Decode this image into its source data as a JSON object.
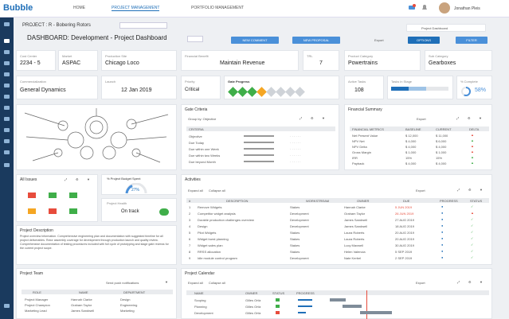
{
  "app": {
    "logo": "Bubble",
    "user": "Jonathan Pleis"
  },
  "nav": [
    "HOME",
    "PROJECT MANAGEMENT",
    "PORTFOLIO MANAGEMENT"
  ],
  "breadcrumb": "PROJECT : R - Bobering Rotors",
  "tab_right": "Project Dashboard",
  "title": "DASHBOARD: Development - Project Dashboard",
  "buttons": {
    "new_comment": "NEW COMMENT",
    "new_proposal": "NEW PROPOSAL",
    "export": "Export",
    "options": "OPTIONS",
    "filter": "FILTER"
  },
  "fields": [
    {
      "label": "Cost Center",
      "value": "2234 - 5"
    },
    {
      "label": "Market",
      "value": "ASPAC"
    },
    {
      "label": "Production Site",
      "value": "Chicago Loco"
    },
    {
      "label": "Financial Benefit",
      "value": "Maintain Revenue"
    },
    {
      "label": "TRL",
      "value": "7"
    },
    {
      "label": "Product Category",
      "value": "Powertrains"
    },
    {
      "label": "Sub Category",
      "value": "Gearboxes"
    },
    {
      "label": "Commercialization",
      "value": "General Dynamics"
    },
    {
      "label": "Launch",
      "value": "12 Jan 2019"
    },
    {
      "label": "Priority",
      "value": "Critical"
    },
    {
      "label": "Gate Progress",
      "value": ""
    },
    {
      "label": "Active Tasks",
      "value": "108"
    },
    {
      "label": "Tasks in Stage",
      "value": ""
    },
    {
      "label": "% Complete",
      "value": "58%"
    }
  ],
  "gates": [
    "#3fae49",
    "#3fae49",
    "#3fae49",
    "#f5a623",
    "#cfd3d8",
    "#cfd3d8",
    "#cfd3d8",
    "#cfd3d8"
  ],
  "gate_criteria": {
    "title": "Gate Criteria",
    "group": "Group by: Objective",
    "header": "CRITERIA",
    "rows": [
      "Objective",
      "Due Today",
      "Due within one Week",
      "Due within two Weeks",
      "Due beyond Month"
    ]
  },
  "financial": {
    "title": "Financial Summary",
    "headers": [
      "FINANCIAL METRICS",
      "BASELINE",
      "CURRENT",
      "DELTA"
    ],
    "rows": [
      [
        "Net Present Value",
        "$ 12,000",
        "$ 11,000"
      ],
      [
        "NPV Net",
        "$ 4,000",
        "$ 6,000"
      ],
      [
        "NPV Delta",
        "$ 4,000",
        "$ 4,000"
      ],
      [
        "Gross Margin",
        "$ 1,000",
        "$ 1,000"
      ],
      [
        "IRR",
        "15%",
        "15%"
      ],
      [
        "Payback",
        "$ 4,000",
        "$ 4,000"
      ]
    ]
  },
  "issues": {
    "title": "All Issues"
  },
  "budget": {
    "title": "% Project Budget Spent",
    "value": "27%"
  },
  "health": {
    "title": "Project Health",
    "status": "On track"
  },
  "description": {
    "title": "Project Description",
    "text": "Project overview information. Comprehensive engineering plan and documentation with suggested timeline for all project deliverables. Rotor assembly coverage for development through production launch and quality review. Comprehensive documentation of testing procedures included with full cycle of prototyping and stage gate reviews for the current project scope."
  },
  "activities": {
    "title": "Activities",
    "expand": "Expand all",
    "collapse": "Collapse all",
    "headers": [
      "#",
      "DESCRIPTION",
      "WORKSTREAM",
      "OWNER",
      "DUE",
      "PROGRESS",
      "STATUS"
    ],
    "rows": [
      [
        "1",
        "Remove Widgets",
        "Stakes",
        "Hannah Clarke",
        "5 JUN 2019"
      ],
      [
        "2",
        "Competitor widget analysis",
        "Development",
        "Graham Taylor",
        "26 JUN 2019"
      ],
      [
        "3",
        "Durable production challenges overview",
        "Development",
        "James Sandwell",
        "27 AUG 2019"
      ],
      [
        "4",
        "Design",
        "Development",
        "James Sandwell",
        "18 AUG 2019"
      ],
      [
        "5",
        "Pilot Widgets",
        "Stakes",
        "Laura Roberts",
        "20 AUG 2019"
      ],
      [
        "6",
        "Widget burst planning",
        "Stakes",
        "Laura Roberts",
        "20 AUG 2019"
      ],
      [
        "7",
        "Widget sales plan",
        "Stakes",
        "Lucy Maxwell",
        "30 AUG 2019"
      ],
      [
        "8",
        "RRSS allocation",
        "Stakes",
        "Helen Valencia",
        "5 SEP 2019"
      ],
      [
        "9",
        "Idle module control program",
        "Development",
        "Nate Kerbel",
        "2 SEP 2019"
      ]
    ]
  },
  "team": {
    "title": "Project Team",
    "notify": "Send push notifications",
    "headers": [
      "ROLE",
      "NAME",
      "DEPARTMENT"
    ],
    "rows": [
      [
        "Project Manager",
        "Hannah Clarke",
        "Design"
      ],
      [
        "Project Champion",
        "Graham Taylor",
        "Engineering"
      ],
      [
        "Marketing Lead",
        "James Sandwell",
        "Marketing"
      ]
    ]
  },
  "calendar": {
    "title": "Project Calendar",
    "expand": "Expand all",
    "collapse": "Collapse all",
    "headers": [
      "NAME",
      "OWNER",
      "STATUS",
      "PROGRESS"
    ],
    "rows": [
      [
        "Scoping",
        "Gilles Ortiz"
      ],
      [
        "Planning",
        "Gilles Ortiz"
      ],
      [
        "Development",
        "Gilles Ortiz"
      ]
    ]
  }
}
